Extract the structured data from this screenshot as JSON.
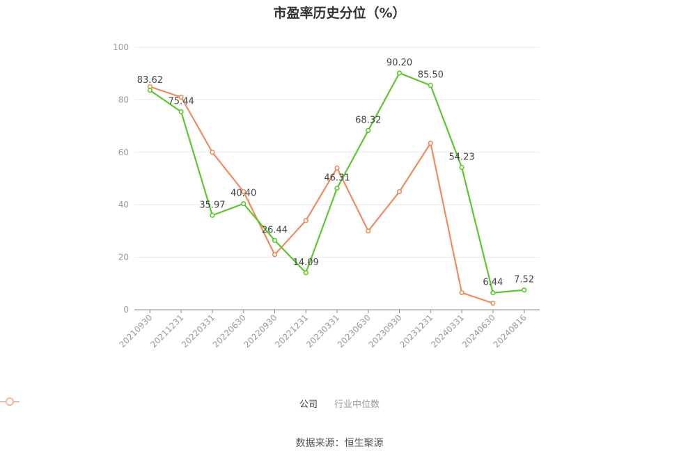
{
  "title": "市盈率历史分位（%）",
  "source": "数据来源：恒生聚源",
  "colors": {
    "company": "#5cc72e",
    "industry": "#f28a5c",
    "grid": "#e6e9f0",
    "axis": "#888888"
  },
  "chart_data": {
    "type": "line",
    "title": "市盈率历史分位（%）",
    "categories": [
      "20210930",
      "20211231",
      "20220331",
      "20220630",
      "20220930",
      "20221231",
      "20230331",
      "20230630",
      "20230930",
      "20231231",
      "20240331",
      "20240630",
      "20240816"
    ],
    "ylim": [
      0,
      100
    ],
    "yticks": [
      0,
      20,
      40,
      60,
      80,
      100
    ],
    "grid": true,
    "legend_position": "bottom",
    "series": [
      {
        "name": "公司",
        "color": "#5cc72e",
        "labels": true,
        "values": [
          83.62,
          75.44,
          35.97,
          40.4,
          26.44,
          14.09,
          46.31,
          68.32,
          90.2,
          85.5,
          54.23,
          6.44,
          7.52
        ],
        "value_labels": [
          "83.62",
          "75.44",
          "35.97",
          "40.40",
          "26.44",
          "14.09",
          "46.31",
          "68.32",
          "90.20",
          "85.50",
          "54.23",
          "6.44",
          "7.52"
        ]
      },
      {
        "name": "行业中位数",
        "color": "#f28a5c",
        "labels": false,
        "values": [
          85.0,
          81.0,
          60.0,
          45.0,
          21.0,
          34.0,
          54.0,
          30.0,
          45.0,
          63.5,
          6.5,
          2.5,
          null
        ]
      }
    ]
  }
}
